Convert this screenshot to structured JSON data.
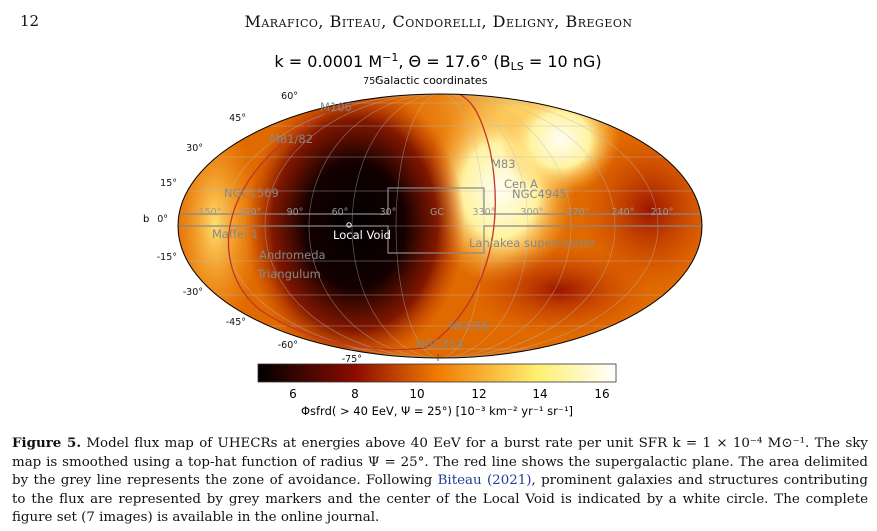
{
  "header": {
    "page_number": "12",
    "authors": "Marafico, Biteau, Condorelli, Deligny, Bregeon"
  },
  "figure": {
    "title": "k = 0.0001 M⊙⁻¹, Θ = 17.6° (B_LS = 10 nG)",
    "title_parts": {
      "a": "k = 0.0001 M",
      "b": "−1",
      "c": ", Θ = 17.6° (B",
      "d": "LS",
      "e": " = 10 nG)"
    },
    "subtitle": "Galactic coordinates",
    "ylabel": "b",
    "lat_ticks": [
      "75°",
      "60°",
      "45°",
      "30°",
      "15°",
      "0°",
      "-15°",
      "-30°",
      "-45°",
      "-60°",
      "-75°"
    ],
    "lon_ticks": [
      "150°",
      "120°",
      "90°",
      "60°",
      "30°",
      "GC",
      "330°",
      "300°",
      "270°",
      "240°",
      "210°"
    ],
    "sources": [
      "M106",
      "M81/82",
      "NGC1569",
      "Maffei 1",
      "Andromeda",
      "Triangulum",
      "M83",
      "Cen A",
      "NGC4945",
      "Laniakea supercluster",
      "NGC55",
      "NGC253"
    ],
    "local_void": "Local Void",
    "colorbar": {
      "ticks": [
        "6",
        "8",
        "10",
        "12",
        "14",
        "16"
      ],
      "range": [
        5,
        16.5
      ],
      "label": "Φsfrd( > 40 EeV, Ψ = 25°)  [10⁻³ km⁻² yr⁻¹ sr⁻¹]",
      "colors": [
        "#000000",
        "#8b0b00",
        "#f07a00",
        "#ffef70",
        "#ffffff"
      ]
    }
  },
  "caption": {
    "label": "Figure 5.",
    "text1": " Model flux map of UHECRs at energies above 40 EeV for a burst rate per unit SFR k = 1 × 10⁻⁴ M⊙⁻¹. The sky map is smoothed using a top-hat function of radius Ψ = 25°. The red line shows the supergalactic plane. The area delimited by the grey line represents the zone of avoidance. Following ",
    "link": "Biteau (2021)",
    "text2": ", prominent galaxies and structures contributing to the flux are represented by grey markers and the center of the Local Void is indicated by a white circle. The complete figure set (7 images) is available in the online journal."
  }
}
